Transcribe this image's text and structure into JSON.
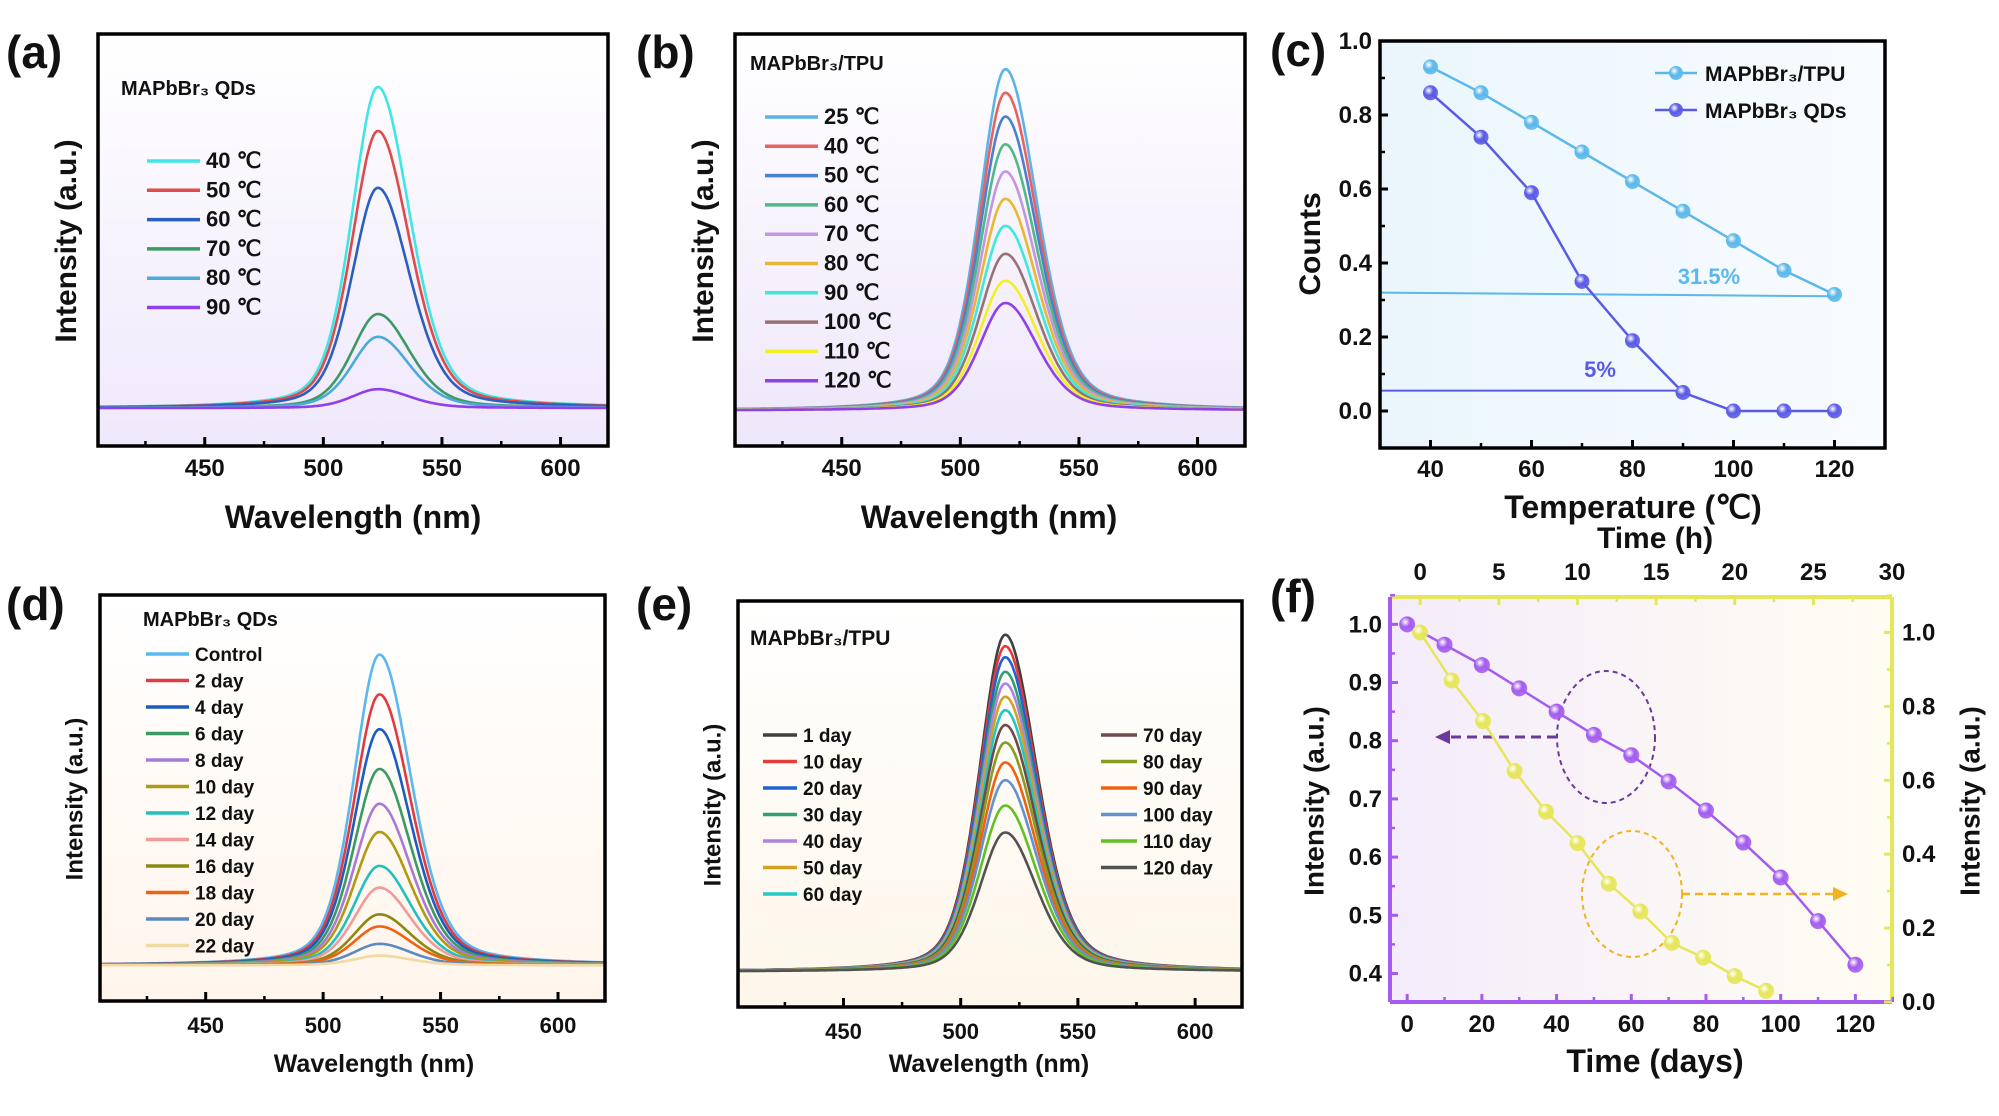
{
  "chart_data": [
    {
      "panel": "(a)",
      "type": "line",
      "title": "MAPbBr₃ QDs",
      "xlabel": "Wavelength (nm)",
      "ylabel": "Intensity (a.u.)",
      "xlim": [
        405,
        620
      ],
      "xticks": [
        450,
        500,
        550,
        600
      ],
      "xtick_labels": [
        "450",
        "500",
        "550",
        "600"
      ],
      "ylim": [
        -0.118,
        1.165
      ],
      "peak_nm": 523,
      "series": [
        {
          "name": "40 ℃",
          "peak": 1.0,
          "color": "#3fe6e6"
        },
        {
          "name": "50 ℃",
          "peak": 0.863,
          "color": "#e04a4a"
        },
        {
          "name": "60 ℃",
          "peak": 0.686,
          "color": "#2a5fc0"
        },
        {
          "name": "70 ℃",
          "peak": 0.293,
          "color": "#3a9a62"
        },
        {
          "name": "80 ℃",
          "peak": 0.222,
          "color": "#4aaad8"
        },
        {
          "name": "90 ℃",
          "peak": 0.059,
          "color": "#9040ea"
        }
      ]
    },
    {
      "panel": "(b)",
      "type": "line",
      "title": "MAPbBr₃/TPU",
      "xlabel": "Wavelength (nm)",
      "ylabel": "Intensity (a.u.)",
      "xlim": [
        405,
        620
      ],
      "xticks": [
        450,
        500,
        550,
        600
      ],
      "xtick_labels": [
        "450",
        "500",
        "550",
        "600"
      ],
      "ylim": [
        -0.104,
        1.103
      ],
      "peak_nm": 519,
      "series": [
        {
          "name": "25 ℃",
          "peak": 1.0,
          "color": "#5ab4e8"
        },
        {
          "name": "40 ℃",
          "peak": 0.931,
          "color": "#e86262"
        },
        {
          "name": "50 ℃",
          "peak": 0.861,
          "color": "#4a80d0"
        },
        {
          "name": "60 ℃",
          "peak": 0.78,
          "color": "#52b888"
        },
        {
          "name": "70 ℃",
          "peak": 0.7,
          "color": "#c296e2"
        },
        {
          "name": "80 ℃",
          "peak": 0.62,
          "color": "#e8b832"
        },
        {
          "name": "90 ℃",
          "peak": 0.541,
          "color": "#3ee8e0"
        },
        {
          "name": "100 ℃",
          "peak": 0.459,
          "color": "#987272"
        },
        {
          "name": "110 ℃",
          "peak": 0.38,
          "color": "#f2f020"
        },
        {
          "name": "120 ℃",
          "peak": 0.315,
          "color": "#9040ea"
        }
      ]
    },
    {
      "panel": "(c)",
      "type": "line",
      "xlabel": "Temperature (℃)",
      "ylabel": "Counts",
      "xlim": [
        30,
        130
      ],
      "ylim": [
        -0.1,
        1.0
      ],
      "xticks": [
        40,
        60,
        80,
        100,
        120
      ],
      "xtick_labels": [
        "40",
        "60",
        "80",
        "100",
        "120"
      ],
      "yticks": [
        0,
        0.2,
        0.4,
        0.6,
        0.8,
        1.0
      ],
      "ytick_labels": [
        "0.0",
        "0.2",
        "0.4",
        "0.6",
        "0.8",
        "1.0"
      ],
      "x": [
        40,
        50,
        60,
        70,
        80,
        90,
        100,
        110,
        120
      ],
      "legend_position": "top-right",
      "series": [
        {
          "name": "MAPbBr₃/TPU",
          "values": [
            0.93,
            0.86,
            0.78,
            0.7,
            0.62,
            0.54,
            0.46,
            0.38,
            0.315
          ],
          "color": "#5ab8ea"
        },
        {
          "name": "MAPbBr₃ QDs",
          "values": [
            0.86,
            0.74,
            0.59,
            0.35,
            0.19,
            0.05,
            0.0,
            0.0,
            0.0
          ],
          "color": "#5a5ae6"
        }
      ],
      "annotations": [
        {
          "text": "31.5%",
          "y_start": 0.32,
          "y_end": 0.31,
          "x_end": 120,
          "color": "#5ab8ea"
        },
        {
          "text": "5%",
          "y_start": 0.055,
          "y_end": 0.055,
          "x_end": 90,
          "color": "#5a5ae6"
        }
      ]
    },
    {
      "panel": "(d)",
      "type": "line",
      "title": "MAPbBr₃ QDs",
      "xlabel": "Wavelength (nm)",
      "ylabel": "Intensity (a.u.)",
      "xlim": [
        405,
        620
      ],
      "xticks": [
        450,
        500,
        550,
        600
      ],
      "xtick_labels": [
        "450",
        "500",
        "550",
        "600"
      ],
      "ylim": [
        -0.115,
        1.192
      ],
      "peak_nm": 524,
      "series": [
        {
          "name": "Control",
          "peak": 1.0,
          "color": "#5ab8f0"
        },
        {
          "name": "2 day",
          "peak": 0.872,
          "color": "#e03a42"
        },
        {
          "name": "4 day",
          "peak": 0.76,
          "color": "#1a5cc2"
        },
        {
          "name": "6 day",
          "peak": 0.632,
          "color": "#3a9a62"
        },
        {
          "name": "8 day",
          "peak": 0.52,
          "color": "#a87ad8"
        },
        {
          "name": "10 day",
          "peak": 0.429,
          "color": "#b09a12"
        },
        {
          "name": "12 day",
          "peak": 0.32,
          "color": "#20c0c0"
        },
        {
          "name": "14 day",
          "peak": 0.25,
          "color": "#f09a9a"
        },
        {
          "name": "16 day",
          "peak": 0.164,
          "color": "#8a8a12"
        },
        {
          "name": "18 day",
          "peak": 0.125,
          "color": "#f06212"
        },
        {
          "name": "20 day",
          "peak": 0.069,
          "color": "#5a8ac2"
        },
        {
          "name": "22 day",
          "peak": 0.031,
          "color": "#f2d9a2"
        }
      ]
    },
    {
      "panel": "(e)",
      "type": "line",
      "title": "MAPbBr₃/TPU",
      "xlabel": "Wavelength (nm)",
      "ylabel": "Intensity (a.u.)",
      "xlim": [
        405,
        620
      ],
      "xticks": [
        450,
        500,
        550,
        600
      ],
      "xtick_labels": [
        "450",
        "500",
        "550",
        "600"
      ],
      "ylim": [
        -0.105,
        1.1
      ],
      "peak_nm": 519,
      "series": [
        {
          "name": "1 day",
          "peak": 1.0,
          "color": "#404040"
        },
        {
          "name": "10 day",
          "peak": 0.966,
          "color": "#e83a3a"
        },
        {
          "name": "20 day",
          "peak": 0.933,
          "color": "#2062d2"
        },
        {
          "name": "30 day",
          "peak": 0.89,
          "color": "#30a072"
        },
        {
          "name": "40 day",
          "peak": 0.855,
          "color": "#b282e2"
        },
        {
          "name": "50 day",
          "peak": 0.816,
          "color": "#d2a222"
        },
        {
          "name": "60 day",
          "peak": 0.776,
          "color": "#20c8c8"
        },
        {
          "name": "70 day",
          "peak": 0.732,
          "color": "#704a4a"
        },
        {
          "name": "80 day",
          "peak": 0.68,
          "color": "#8a9a22"
        },
        {
          "name": "90 day",
          "peak": 0.621,
          "color": "#f06212"
        },
        {
          "name": "100 day",
          "peak": 0.568,
          "color": "#6292d2"
        },
        {
          "name": "110 day",
          "peak": 0.493,
          "color": "#62c022"
        },
        {
          "name": "120 day",
          "peak": 0.413,
          "color": "#525252"
        }
      ]
    },
    {
      "panel": "(f)",
      "type": "line",
      "xlabel": "Time (days)",
      "x2label": "Time (h)",
      "ylabel": "Intensity (a.u.)",
      "y2label": "Intensity (a.u.)",
      "xlim": [
        -4.6,
        129.8
      ],
      "x2lim": [
        -1.92,
        30.0
      ],
      "ylim": [
        0.351,
        1.047
      ],
      "y2lim": [
        0.0,
        1.096
      ],
      "xticks": [
        0,
        20,
        40,
        60,
        80,
        100,
        120
      ],
      "xtick_labels": [
        "0",
        "20",
        "40",
        "60",
        "80",
        "100",
        "120"
      ],
      "x2ticks": [
        0,
        5,
        10,
        15,
        20,
        25,
        30
      ],
      "x2tick_labels": [
        "0",
        "5",
        "10",
        "15",
        "20",
        "25",
        "30"
      ],
      "yticks": [
        0.4,
        0.5,
        0.6,
        0.7,
        0.8,
        0.9,
        1.0
      ],
      "ytick_labels": [
        "0.4",
        "0.5",
        "0.6",
        "0.7",
        "0.8",
        "0.9",
        "1.0"
      ],
      "y2ticks": [
        0.0,
        0.2,
        0.4,
        0.6,
        0.8,
        1.0
      ],
      "y2tick_labels": [
        "0.0",
        "0.2",
        "0.4",
        "0.6",
        "0.8",
        "1.0"
      ],
      "axis_colors": {
        "left_bottom": "#a45cf0",
        "top_right": "#e6e65a"
      },
      "series": [
        {
          "axes": "bottom-left",
          "x": [
            0,
            10,
            20,
            30,
            40,
            50,
            60,
            70,
            80,
            90,
            100,
            110,
            120
          ],
          "values": [
            1.0,
            0.965,
            0.93,
            0.89,
            0.85,
            0.81,
            0.775,
            0.73,
            0.68,
            0.625,
            0.565,
            0.49,
            0.415
          ],
          "color": "#a45cf0"
        },
        {
          "axes": "top-right",
          "x": [
            0,
            2,
            4,
            6,
            8,
            10,
            12,
            14,
            16,
            18,
            20,
            22
          ],
          "values": [
            1.0,
            0.87,
            0.76,
            0.625,
            0.515,
            0.43,
            0.32,
            0.245,
            0.16,
            0.12,
            0.07,
            0.03
          ],
          "color": "#e6e65a"
        }
      ],
      "annotations": [
        {
          "shape": "dashed-ellipse-arrow",
          "points_to": "left",
          "color": "#6a3a9a"
        },
        {
          "shape": "dashed-ellipse-arrow",
          "points_to": "right",
          "color": "#f0b420"
        }
      ]
    }
  ]
}
